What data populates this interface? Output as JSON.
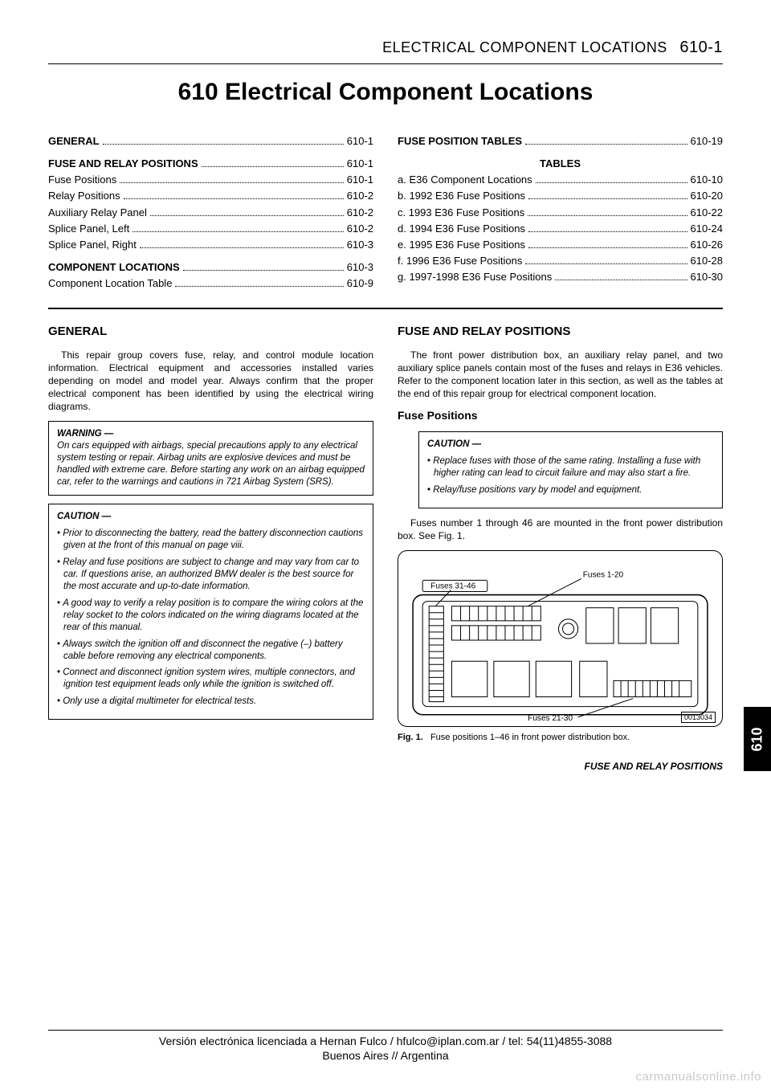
{
  "runningHead": {
    "title": "ELECTRICAL COMPONENT LOCATIONS",
    "page": "610-1"
  },
  "chapterTitle": "610 Electrical Component Locations",
  "tocLeft": [
    {
      "label": "GENERAL",
      "page": "610-1",
      "bold": true
    },
    {
      "spacer": true
    },
    {
      "label": "FUSE AND RELAY POSITIONS",
      "page": "610-1",
      "bold": true
    },
    {
      "label": "Fuse Positions",
      "page": "610-1"
    },
    {
      "label": "Relay Positions",
      "page": "610-2"
    },
    {
      "label": "Auxiliary Relay Panel",
      "page": "610-2"
    },
    {
      "label": "Splice Panel, Left",
      "page": "610-2"
    },
    {
      "label": "Splice Panel, Right",
      "page": "610-3"
    },
    {
      "spacer": true
    },
    {
      "label": "COMPONENT LOCATIONS",
      "page": "610-3",
      "bold": true
    },
    {
      "label": "Component Location Table",
      "page": "610-9"
    }
  ],
  "tocRight": [
    {
      "label": "FUSE POSITION TABLES",
      "page": "610-19",
      "bold": true
    },
    {
      "spacer": true
    },
    {
      "label": "TABLES",
      "center": true
    },
    {
      "label": "a. E36 Component Locations",
      "page": "610-10"
    },
    {
      "label": "b. 1992 E36 Fuse Positions",
      "page": "610-20"
    },
    {
      "label": "c. 1993 E36 Fuse Positions",
      "page": "610-22"
    },
    {
      "label": "d. 1994 E36 Fuse Positions",
      "page": "610-24"
    },
    {
      "label": "e. 1995 E36 Fuse Positions",
      "page": "610-26"
    },
    {
      "label": "f. 1996 E36 Fuse Positions",
      "page": "610-28"
    },
    {
      "label": "g. 1997-1998 E36 Fuse Positions",
      "page": "610-30"
    }
  ],
  "left": {
    "heading": "GENERAL",
    "para": "This repair group covers fuse, relay, and control module location information. Electrical equipment and accessories installed varies depending on model and model year. Always confirm that the proper electrical component has been identified by using the electrical wiring diagrams.",
    "warning": {
      "head": "WARNING —",
      "text": "On cars equipped with airbags, special precautions apply to any electrical system testing or repair. Airbag units are explosive devices and must be handled with extreme care. Before starting any work on an airbag equipped car, refer to the warnings and cautions in 721 Airbag System (SRS)."
    },
    "caution": {
      "head": "CAUTION —",
      "items": [
        "Prior to disconnecting the battery, read the battery disconnection cautions given at the front of this manual on page viii.",
        "Relay and fuse positions are subject to change and may vary from car to car. If questions arise, an authorized BMW dealer is the best source for the most accurate and up-to-date information.",
        "A good way to verify a relay position is to compare the wiring colors at the relay socket to the colors indicated on the wiring diagrams located at the rear of this manual.",
        "Always switch the ignition off and disconnect the negative (–) battery cable before removing any electrical components.",
        "Connect and disconnect ignition system wires, multiple connectors, and ignition test equipment leads only while the ignition is switched off.",
        "Only use a digital multimeter for electrical tests."
      ]
    }
  },
  "right": {
    "heading": "FUSE AND RELAY POSITIONS",
    "para": "The front power distribution box, an auxiliary relay panel, and two auxiliary splice panels contain most of the fuses and relays in E36 vehicles. Refer to the component location later in this section, as well as the tables at the end of this repair group for electrical component location.",
    "sub": "Fuse Positions",
    "caution": {
      "head": "CAUTION —",
      "items": [
        "Replace fuses with those of the same rating. Installing a fuse with higher rating can lead to circuit failure and may also start a fire.",
        "Relay/fuse positions vary by model and equipment."
      ]
    },
    "para2": "Fuses number 1 through 46 are mounted in the front power distribution box. See Fig. 1.",
    "fig": {
      "labels": {
        "a": "Fuses 31-46",
        "b": "Fuses 1-20",
        "c": "Fuses 21-30"
      },
      "id": "0013034",
      "caption_b": "Fig. 1.",
      "caption": "Fuse positions 1–46 in front power distribution box."
    },
    "footer": "FUSE AND RELAY POSITIONS"
  },
  "sideTab": "610",
  "license": {
    "l1": "Versión electrónica licenciada a Hernan Fulco / hfulco@iplan.com.ar / tel: 54(11)4855-3088",
    "l2": "Buenos Aires // Argentina"
  },
  "watermark": "carmanualsonline.info"
}
